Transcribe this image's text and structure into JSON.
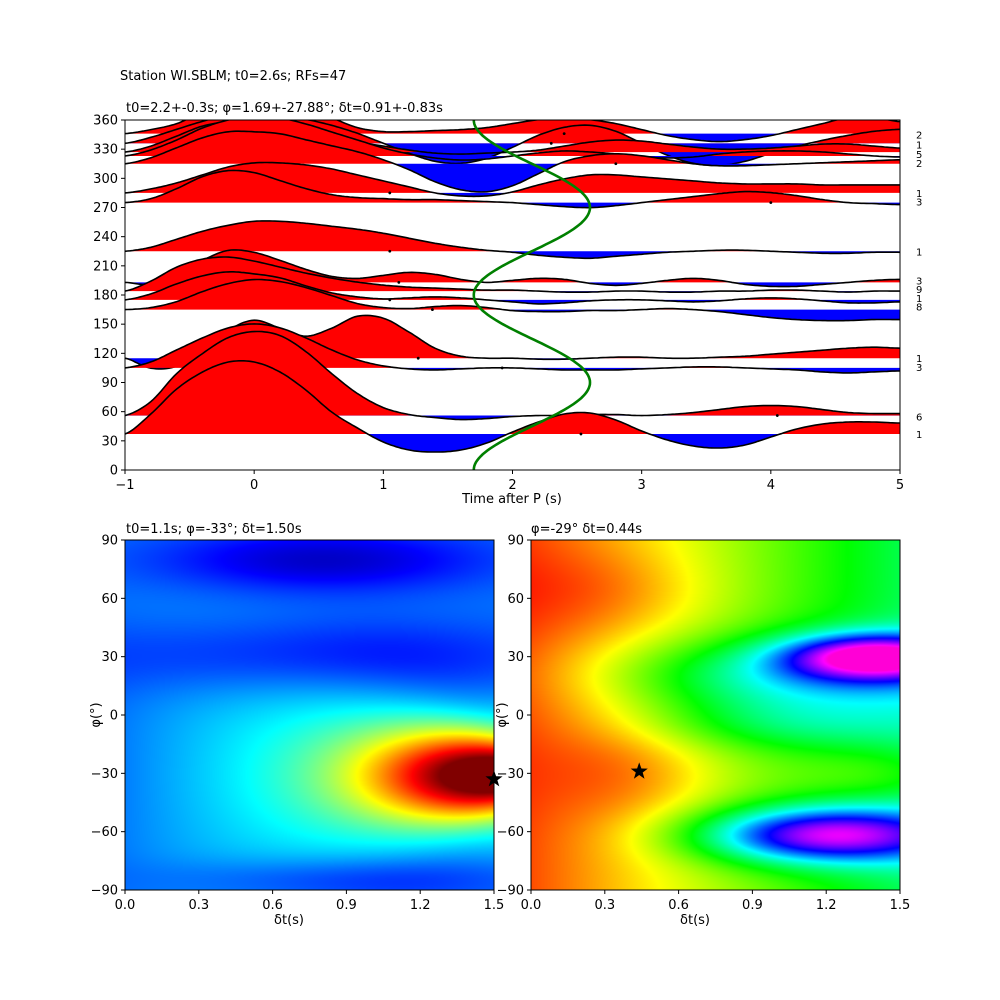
{
  "figure_title": "Station WI.SBLM; t0=2.6s; RFs=47",
  "colors": {
    "positive_fill": "#ff0000",
    "negative_fill": "#0000ff",
    "trace_line": "#000000",
    "curve": "#008000",
    "star": "#000000"
  },
  "chart_data": [
    {
      "type": "line",
      "name": "receiver-functions-vs-backazimuth",
      "title": "t0=2.2+-0.3s; φ=1.69+-27.88°; δt=0.91+-0.83s",
      "xlabel": "Time after P (s)",
      "ylabel": "",
      "xlim": [
        -1,
        5
      ],
      "ylim": [
        0,
        360
      ],
      "xticks": [
        "−1",
        "0",
        "1",
        "2",
        "3",
        "4",
        "5"
      ],
      "yticks": [
        "0",
        "30",
        "60",
        "90",
        "120",
        "150",
        "180",
        "210",
        "240",
        "270",
        "300",
        "330",
        "360"
      ],
      "traces": [
        {
          "baz": 37,
          "amp": [
            0,
            20,
            45,
            62,
            72,
            72,
            62,
            44,
            22,
            6,
            -8,
            -16,
            -18,
            -16,
            -9,
            2,
            12,
            20,
            21,
            14,
            3,
            -6,
            -12,
            -14,
            -11,
            -3,
            5,
            10,
            12,
            12,
            11
          ]
        },
        {
          "baz": 56,
          "amp": [
            0,
            14,
            42,
            62,
            78,
            84,
            80,
            64,
            42,
            22,
            8,
            1,
            -2,
            -4,
            -3,
            -1,
            0,
            0,
            1,
            1,
            0,
            1,
            3,
            6,
            9,
            10,
            9,
            6,
            3,
            2,
            2
          ]
        },
        {
          "baz": 105,
          "amp": [
            0,
            6,
            18,
            30,
            40,
            44,
            40,
            30,
            18,
            8,
            2,
            -1,
            -2,
            -1,
            0,
            0,
            -1,
            -2,
            -2,
            -2,
            -1,
            0,
            1,
            1,
            0,
            -1,
            -2,
            -4,
            -5,
            -4,
            -3
          ]
        },
        {
          "baz": 115,
          "amp": [
            0,
            -10,
            -8,
            8,
            28,
            38,
            30,
            22,
            30,
            42,
            40,
            26,
            10,
            2,
            0,
            0,
            -1,
            -1,
            0,
            1,
            1,
            0,
            0,
            1,
            2,
            4,
            6,
            8,
            10,
            11,
            10
          ]
        },
        {
          "baz": 165,
          "amp": [
            0,
            2,
            8,
            18,
            26,
            30,
            28,
            22,
            14,
            6,
            2,
            1,
            3,
            4,
            2,
            -1,
            -2,
            -2,
            -1,
            -1,
            0,
            1,
            0,
            -2,
            -5,
            -8,
            -10,
            -11,
            -11,
            -10,
            -10
          ]
        },
        {
          "baz": 175,
          "amp": [
            0,
            6,
            16,
            24,
            28,
            26,
            22,
            14,
            7,
            3,
            1,
            2,
            3,
            2,
            0,
            -2,
            -4,
            -3,
            -1,
            0,
            0,
            -1,
            -2,
            -1,
            1,
            2,
            1,
            -1,
            -3,
            -3,
            -2
          ]
        },
        {
          "baz": 184,
          "amp": [
            0,
            10,
            24,
            32,
            34,
            30,
            24,
            18,
            13,
            9,
            6,
            4,
            3,
            2,
            1,
            1,
            0,
            -1,
            -1,
            0,
            0,
            -1,
            -1,
            0,
            0,
            1,
            1,
            0,
            -1,
            0,
            0
          ]
        },
        {
          "baz": 193,
          "amp": [
            0,
            -2,
            8,
            22,
            32,
            30,
            22,
            13,
            6,
            4,
            7,
            10,
            8,
            3,
            0,
            2,
            4,
            3,
            -1,
            -3,
            -1,
            2,
            4,
            2,
            -2,
            -4,
            -4,
            -2,
            0,
            2,
            3
          ]
        },
        {
          "baz": 225,
          "amp": [
            0,
            4,
            12,
            20,
            26,
            30,
            30,
            28,
            25,
            22,
            18,
            13,
            8,
            4,
            1,
            -1,
            -4,
            -6,
            -7,
            -5,
            -3,
            -1,
            0,
            1,
            1,
            0,
            -1,
            -2,
            -2,
            -1,
            -1
          ]
        },
        {
          "baz": 275,
          "amp": [
            0,
            4,
            14,
            26,
            32,
            30,
            22,
            14,
            8,
            5,
            4,
            3,
            3,
            2,
            1,
            0,
            -2,
            -4,
            -5,
            -3,
            0,
            3,
            6,
            9,
            11,
            10,
            7,
            3,
            0,
            -1,
            -2
          ]
        },
        {
          "baz": 285,
          "amp": [
            0,
            4,
            10,
            18,
            26,
            30,
            30,
            28,
            24,
            18,
            12,
            6,
            0,
            -3,
            -3,
            1,
            8,
            14,
            18,
            18,
            16,
            14,
            12,
            10,
            9,
            9,
            9,
            8,
            8,
            8,
            8
          ]
        },
        {
          "baz": 315,
          "amp": [
            0,
            6,
            16,
            26,
            32,
            32,
            30,
            24,
            18,
            12,
            4,
            -6,
            -18,
            -26,
            -28,
            -22,
            -10,
            2,
            8,
            10,
            8,
            4,
            0,
            -2,
            -2,
            -1,
            0,
            1,
            2,
            3,
            4
          ]
        },
        {
          "baz": 323,
          "amp": [
            0,
            6,
            16,
            28,
            36,
            40,
            38,
            32,
            24,
            16,
            8,
            2,
            -2,
            -4,
            -3,
            0,
            3,
            5,
            4,
            2,
            -1,
            -2,
            -1,
            2,
            4,
            5,
            5,
            4,
            2,
            0,
            -1
          ]
        },
        {
          "baz": 327,
          "amp": [
            0,
            6,
            16,
            26,
            30,
            28,
            24,
            18,
            14,
            10,
            6,
            2,
            -1,
            -2,
            -1,
            0,
            2,
            6,
            10,
            12,
            11,
            8,
            5,
            3,
            3,
            4,
            6,
            8,
            8,
            6,
            4
          ]
        },
        {
          "baz": 336,
          "amp": [
            0,
            6,
            14,
            22,
            28,
            30,
            28,
            24,
            18,
            10,
            0,
            -10,
            -18,
            -20,
            -15,
            -4,
            8,
            16,
            18,
            12,
            0,
            -12,
            -20,
            -22,
            -18,
            -10,
            -3,
            3,
            8,
            12,
            14
          ]
        },
        {
          "baz": 346,
          "amp": [
            0,
            4,
            10,
            22,
            34,
            40,
            38,
            28,
            16,
            6,
            2,
            2,
            3,
            4,
            6,
            10,
            14,
            16,
            14,
            10,
            4,
            -2,
            -6,
            -8,
            -6,
            -2,
            4,
            10,
            16,
            16,
            12
          ]
        }
      ],
      "right_labels": [
        {
          "baz": 345,
          "text": "2"
        },
        {
          "baz": 335,
          "text": "1"
        },
        {
          "baz": 325,
          "text": "5"
        },
        {
          "baz": 316,
          "text": "2"
        },
        {
          "baz": 285,
          "text": "1"
        },
        {
          "baz": 276,
          "text": "3"
        },
        {
          "baz": 225,
          "text": "1"
        },
        {
          "baz": 195,
          "text": "3"
        },
        {
          "baz": 186,
          "text": "9"
        },
        {
          "baz": 177,
          "text": "1"
        },
        {
          "baz": 168,
          "text": "8"
        },
        {
          "baz": 115,
          "text": "1"
        },
        {
          "baz": 106,
          "text": "3"
        },
        {
          "baz": 55,
          "text": "6"
        },
        {
          "baz": 37,
          "text": "1"
        }
      ],
      "picks": [
        [
          2.4,
          346
        ],
        [
          2.3,
          336
        ],
        [
          2.8,
          315
        ],
        [
          1.05,
          285
        ],
        [
          4.0,
          275
        ],
        [
          1.05,
          225
        ],
        [
          1.12,
          193
        ],
        [
          1.05,
          175
        ],
        [
          1.38,
          165
        ],
        [
          1.27,
          115
        ],
        [
          1.92,
          105
        ],
        [
          4.05,
          56
        ],
        [
          2.53,
          37
        ]
      ],
      "green_curve": {
        "center_time": 2.15,
        "amplitude": 0.45,
        "period_deg": 180,
        "phase_deg": 90
      }
    },
    {
      "type": "heatmap",
      "name": "grid-search-left",
      "title": "t0=1.1s; φ=-33°; δt=1.50s",
      "xlabel": "δt(s)",
      "ylabel": "φ(°)",
      "xlim": [
        0.0,
        1.5
      ],
      "ylim": [
        -90,
        90
      ],
      "xticks": [
        "0.0",
        "0.3",
        "0.6",
        "0.9",
        "1.2",
        "1.5"
      ],
      "yticks": [
        "−90",
        "−60",
        "−30",
        "0",
        "30",
        "60",
        "90"
      ],
      "colormap": "jet",
      "best": {
        "dt": 1.5,
        "phi": -33
      }
    },
    {
      "type": "heatmap",
      "name": "grid-search-right",
      "title": "φ=-29° δt=0.44s",
      "xlabel": "δt(s)",
      "ylabel": "φ(°)",
      "xlim": [
        0.0,
        1.5
      ],
      "ylim": [
        -90,
        90
      ],
      "xticks": [
        "0.0",
        "0.3",
        "0.6",
        "0.9",
        "1.2",
        "1.5"
      ],
      "yticks": [
        "−90",
        "−60",
        "−30",
        "0",
        "30",
        "60",
        "90"
      ],
      "colormap": "hsv",
      "best": {
        "dt": 0.44,
        "phi": -29
      }
    }
  ]
}
